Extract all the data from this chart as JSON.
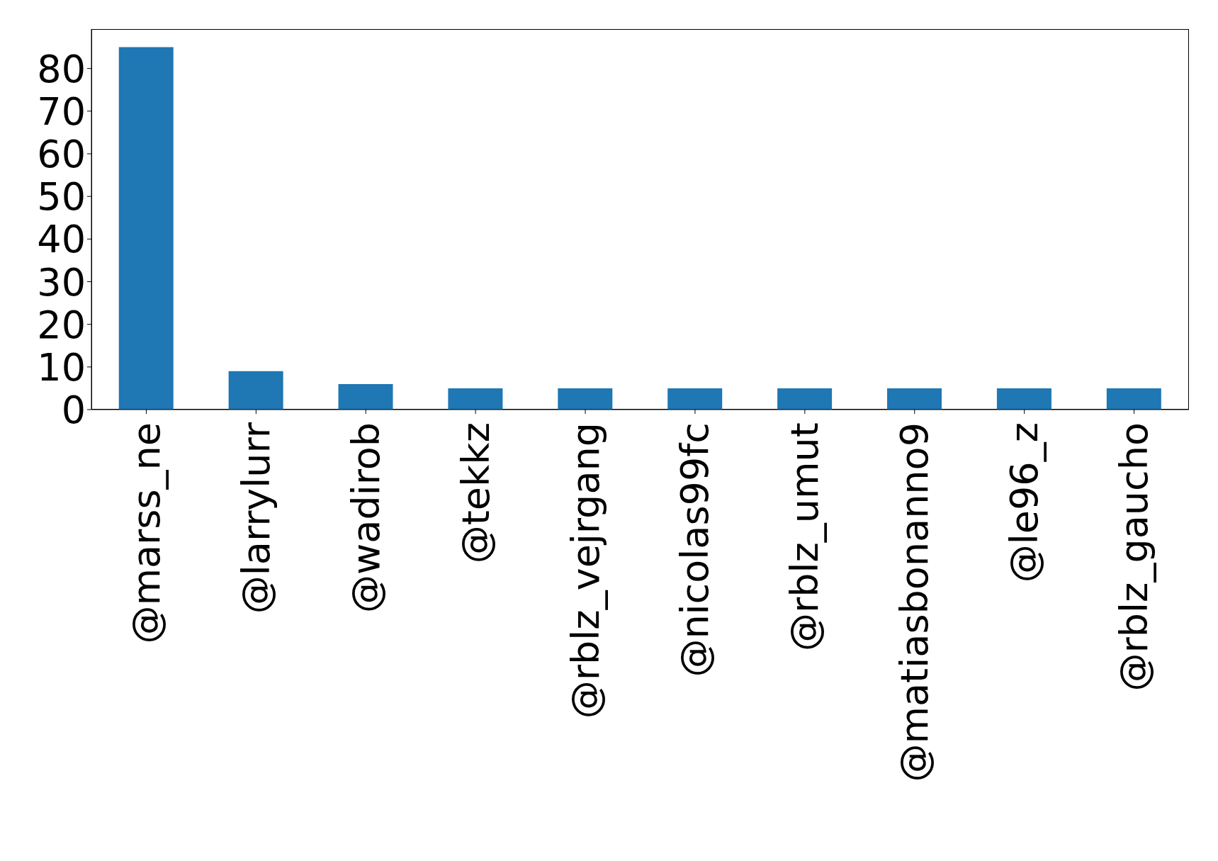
{
  "chart_data": {
    "type": "bar",
    "categories": [
      "@marss_ne",
      "@larrylurr",
      "@wadirob",
      "@tekkz",
      "@rblz_vejrgang",
      "@nicolas99fc",
      "@rblz_umut",
      "@matiasbonanno9",
      "@le96_z",
      "@rblz_gaucho"
    ],
    "values": [
      85,
      9,
      6,
      5,
      5,
      5,
      5,
      5,
      5,
      5
    ],
    "color": "#1f77b4",
    "ylim": [
      0,
      89.25
    ],
    "yticks": [
      0,
      10,
      20,
      30,
      40,
      50,
      60,
      70,
      80
    ],
    "grid": false
  }
}
